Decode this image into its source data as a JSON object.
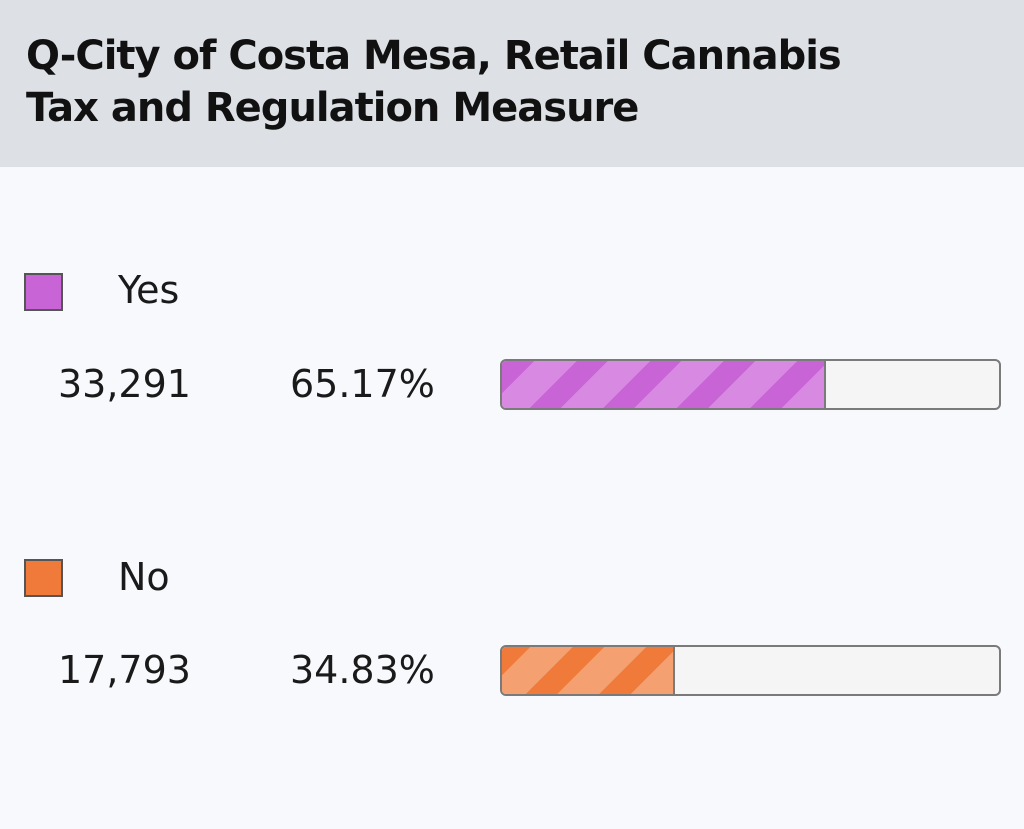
{
  "header": {
    "title_line1": "Q-City of Costa Mesa, Retail Cannabis",
    "title_line2": "Tax and Regulation Measure"
  },
  "colors": {
    "yes": "#c864d6",
    "yes_stripe": "#d88ae2",
    "no": "#f07a3a",
    "no_stripe": "#f5a070"
  },
  "chart_data": {
    "type": "bar",
    "title": "Q-City of Costa Mesa, Retail Cannabis Tax and Regulation Measure",
    "categories": [
      "Yes",
      "No"
    ],
    "votes": [
      "33,291",
      "17,793"
    ],
    "percent_labels": [
      "65.17%",
      "34.83%"
    ],
    "values": [
      65.17,
      34.83
    ],
    "xlim": [
      0,
      100
    ],
    "legend": "inline"
  }
}
